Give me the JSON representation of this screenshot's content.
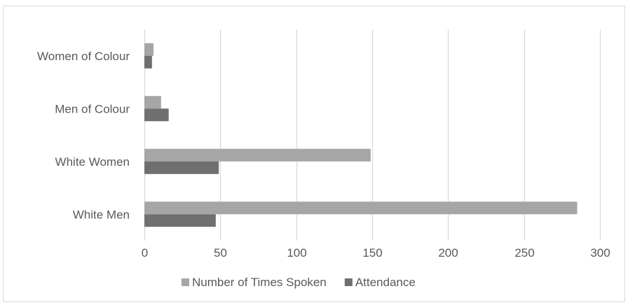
{
  "chart_data": {
    "type": "bar",
    "orientation": "horizontal",
    "categories": [
      "Women of Colour",
      "Men of Colour",
      "White Women",
      "White Men"
    ],
    "series": [
      {
        "name": "Number of Times Spoken",
        "values": [
          6,
          11,
          149,
          285
        ],
        "color": "#a6a6a6"
      },
      {
        "name": "Attendance",
        "values": [
          5,
          16,
          49,
          47
        ],
        "color": "#6f6f6f"
      }
    ],
    "x_ticks": [
      0,
      50,
      100,
      150,
      200,
      250,
      300
    ],
    "xlim": [
      0,
      300
    ],
    "grid": true,
    "legend_position": "bottom",
    "gridline_color": "#d9d9d9"
  }
}
